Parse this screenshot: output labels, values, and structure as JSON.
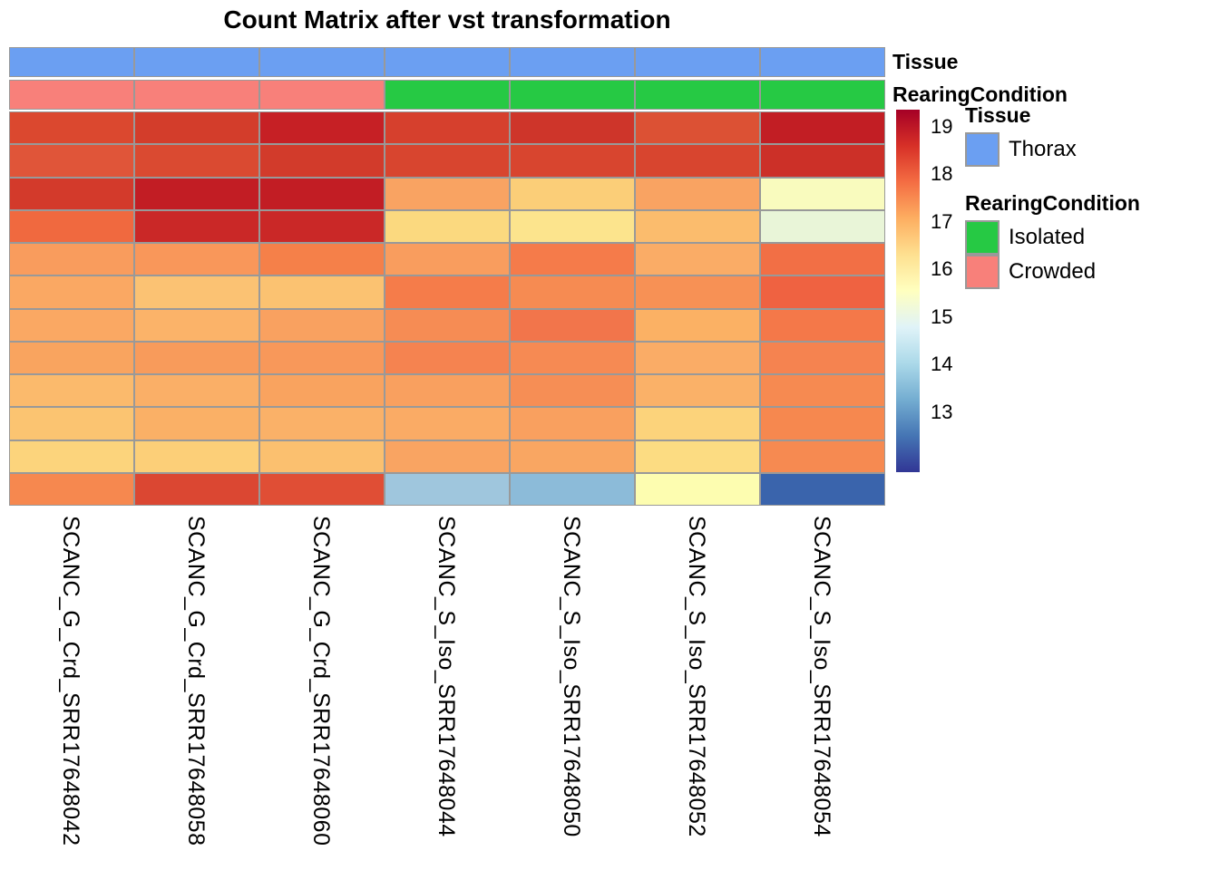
{
  "title": "Count Matrix after vst transformation",
  "annotation_bars": {
    "tissue_label": "Tissue",
    "rearing_label": "RearingCondition",
    "tissue_values": [
      "Thorax",
      "Thorax",
      "Thorax",
      "Thorax",
      "Thorax",
      "Thorax",
      "Thorax"
    ],
    "rearing_values": [
      "Crowded",
      "Crowded",
      "Crowded",
      "Isolated",
      "Isolated",
      "Isolated",
      "Isolated"
    ]
  },
  "legend": {
    "tissue": {
      "title": "Tissue",
      "items": [
        {
          "label": "Thorax",
          "color": "#6B9FF2"
        }
      ]
    },
    "rearing": {
      "title": "RearingCondition",
      "items": [
        {
          "label": "Isolated",
          "color": "#26C944"
        },
        {
          "label": "Crowded",
          "color": "#F8807A"
        }
      ]
    }
  },
  "colorbar": {
    "ticks": [
      19,
      18,
      17,
      16,
      15,
      14,
      13
    ],
    "scale_min": 11.74,
    "scale_max": 19.36,
    "gradient_top_to_bottom": [
      "#A50026",
      "#D73027",
      "#F46D43",
      "#FDAE61",
      "#FEE090",
      "#FFFFBF",
      "#E0F3F8",
      "#ABD9E9",
      "#74ADD1",
      "#4575B4",
      "#313695"
    ]
  },
  "chart_data": {
    "type": "heatmap",
    "title": "Count Matrix after vst transformation",
    "columns": [
      "SCANC_G_Crd_SRR17648042",
      "SCANC_G_Crd_SRR17648058",
      "SCANC_G_Crd_SRR17648060",
      "SCANC_S_Iso_SRR17648044",
      "SCANC_S_Iso_SRR17648050",
      "SCANC_S_Iso_SRR17648052",
      "SCANC_S_Iso_SRR17648054"
    ],
    "column_annotations": {
      "Tissue": [
        "Thorax",
        "Thorax",
        "Thorax",
        "Thorax",
        "Thorax",
        "Thorax",
        "Thorax"
      ],
      "RearingCondition": [
        "Crowded",
        "Crowded",
        "Crowded",
        "Isolated",
        "Isolated",
        "Isolated",
        "Isolated"
      ]
    },
    "n_rows": 12,
    "row_labels_shown": false,
    "grid_color": "#999999",
    "palette_name": "RdYlBu reversed",
    "color_scale_range": [
      11.74,
      19.36
    ],
    "values_estimated": [
      [
        18.4,
        18.5,
        18.9,
        18.5,
        18.6,
        18.3,
        18.9
      ],
      [
        18.2,
        18.4,
        18.5,
        18.4,
        18.4,
        18.4,
        18.7
      ],
      [
        18.5,
        18.9,
        18.9,
        17.3,
        16.7,
        17.3,
        15.6
      ],
      [
        17.9,
        18.8,
        18.8,
        16.6,
        16.4,
        17.0,
        15.2
      ],
      [
        17.4,
        17.5,
        17.7,
        17.4,
        17.8,
        17.2,
        17.9
      ],
      [
        17.3,
        16.9,
        16.9,
        17.8,
        17.6,
        17.5,
        18.0
      ],
      [
        17.3,
        17.1,
        17.4,
        17.6,
        17.9,
        17.2,
        17.8
      ],
      [
        17.3,
        17.5,
        17.5,
        17.7,
        17.6,
        17.2,
        17.7
      ],
      [
        17.0,
        17.2,
        17.3,
        17.4,
        17.6,
        17.1,
        17.6
      ],
      [
        16.9,
        17.2,
        17.1,
        17.2,
        17.4,
        16.7,
        17.7
      ],
      [
        16.7,
        16.7,
        16.9,
        17.3,
        17.3,
        16.6,
        17.6
      ],
      [
        17.7,
        18.4,
        18.3,
        14.1,
        13.9,
        15.7,
        12.4
      ]
    ],
    "cell_colors": [
      [
        "#DB482F",
        "#D33D2B",
        "#C62025",
        "#D6402D",
        "#CE352A",
        "#DC5134",
        "#C21E24"
      ],
      [
        "#E05539",
        "#DA4A31",
        "#D23B2B",
        "#D8452F",
        "#D8452F",
        "#D8452F",
        "#CC3028"
      ],
      [
        "#D33A2B",
        "#C21D24",
        "#C21D24",
        "#F9A362",
        "#FBCE78",
        "#F9A362",
        "#F9FBBE"
      ],
      [
        "#F0693F",
        "#CA2827",
        "#CA2827",
        "#FBD97F",
        "#FCE48D",
        "#FBBC6D",
        "#E9F5D8"
      ],
      [
        "#F99C5D",
        "#F9975A",
        "#F58049",
        "#F99D5E",
        "#F57B4A",
        "#FAAC66",
        "#F26F45"
      ],
      [
        "#FAA863",
        "#FBC273",
        "#FBC271",
        "#F57C4A",
        "#F68B52",
        "#F79155",
        "#EF6241"
      ],
      [
        "#FAA863",
        "#FBB369",
        "#F9A160",
        "#F68C54",
        "#F2754B",
        "#FBB164",
        "#F47849"
      ],
      [
        "#F9A45F",
        "#F89B5B",
        "#F8985A",
        "#F58350",
        "#F68A53",
        "#FAAC66",
        "#F58350"
      ],
      [
        "#FBBA6C",
        "#FAAF67",
        "#F9A35F",
        "#F9A05F",
        "#F68E55",
        "#FAB168",
        "#F68A51"
      ],
      [
        "#FBC471",
        "#FAB066",
        "#FAB168",
        "#FAAB65",
        "#F9A05F",
        "#FCD37B",
        "#F6884F"
      ],
      [
        "#FCD47C",
        "#FCCF78",
        "#FBC06F",
        "#F9A462",
        "#F9A662",
        "#FCDC82",
        "#F68A51"
      ],
      [
        "#F6884F",
        "#DB4732",
        "#E04E35",
        "#9FC6DD",
        "#8CBBD9",
        "#FDFDB0",
        "#3A64AC"
      ]
    ]
  }
}
